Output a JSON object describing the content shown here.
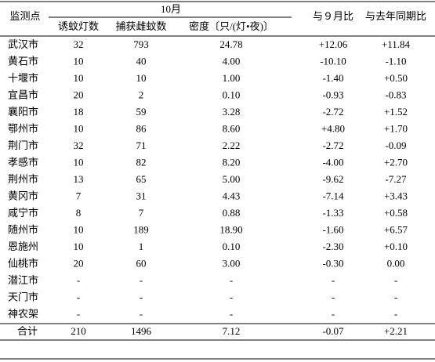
{
  "header": {
    "station": "监测点",
    "month": "10月",
    "sub": [
      "诱蚊灯数",
      "捕获雌蚊数",
      "密度〔只/(灯•夜)〕"
    ],
    "vs_sep": "与９月比",
    "vs_last_year": "与去年同期比"
  },
  "table": {
    "rows": [
      [
        "武汉市",
        "32",
        "793",
        "24.78",
        "+12.06",
        "+11.84"
      ],
      [
        "黄石市",
        "10",
        "40",
        "4.00",
        "-10.10",
        "-1.10"
      ],
      [
        "十堰市",
        "10",
        "10",
        "1.00",
        "-1.40",
        "+0.50"
      ],
      [
        "宜昌市",
        "20",
        "2",
        "0.10",
        "-0.93",
        "-0.83"
      ],
      [
        "襄阳市",
        "18",
        "59",
        "3.28",
        "-2.72",
        "+1.52"
      ],
      [
        "鄂州市",
        "10",
        "86",
        "8.60",
        "+4.80",
        "+1.70"
      ],
      [
        "荆门市",
        "32",
        "71",
        "2.22",
        "-2.72",
        "-0.09"
      ],
      [
        "孝感市",
        "10",
        "82",
        "8.20",
        "-4.00",
        "+2.70"
      ],
      [
        "荆州市",
        "13",
        "65",
        "5.00",
        "-9.62",
        "-7.27"
      ],
      [
        "黄冈市",
        "7",
        "31",
        "4.43",
        "-7.14",
        "+3.43"
      ],
      [
        "咸宁市",
        "8",
        "7",
        "0.88",
        "-1.33",
        "+0.58"
      ],
      [
        "随州市",
        "10",
        "189",
        "18.90",
        "-1.60",
        "+6.57"
      ],
      [
        "恩施州",
        "10",
        "1",
        "0.10",
        "-2.30",
        "+0.10"
      ],
      [
        "仙桃市",
        "20",
        "60",
        "3.00",
        "-0.30",
        "0.00"
      ],
      [
        "潜江市",
        "-",
        "-",
        "-",
        "-",
        "-"
      ],
      [
        "天门市",
        "-",
        "-",
        "-",
        "-",
        "-"
      ],
      [
        "神农架",
        "-",
        "-",
        "-",
        "-",
        "-"
      ]
    ],
    "total": [
      "合计",
      "210",
      "1496",
      "7.12",
      "-0.07",
      "+2.21"
    ]
  }
}
